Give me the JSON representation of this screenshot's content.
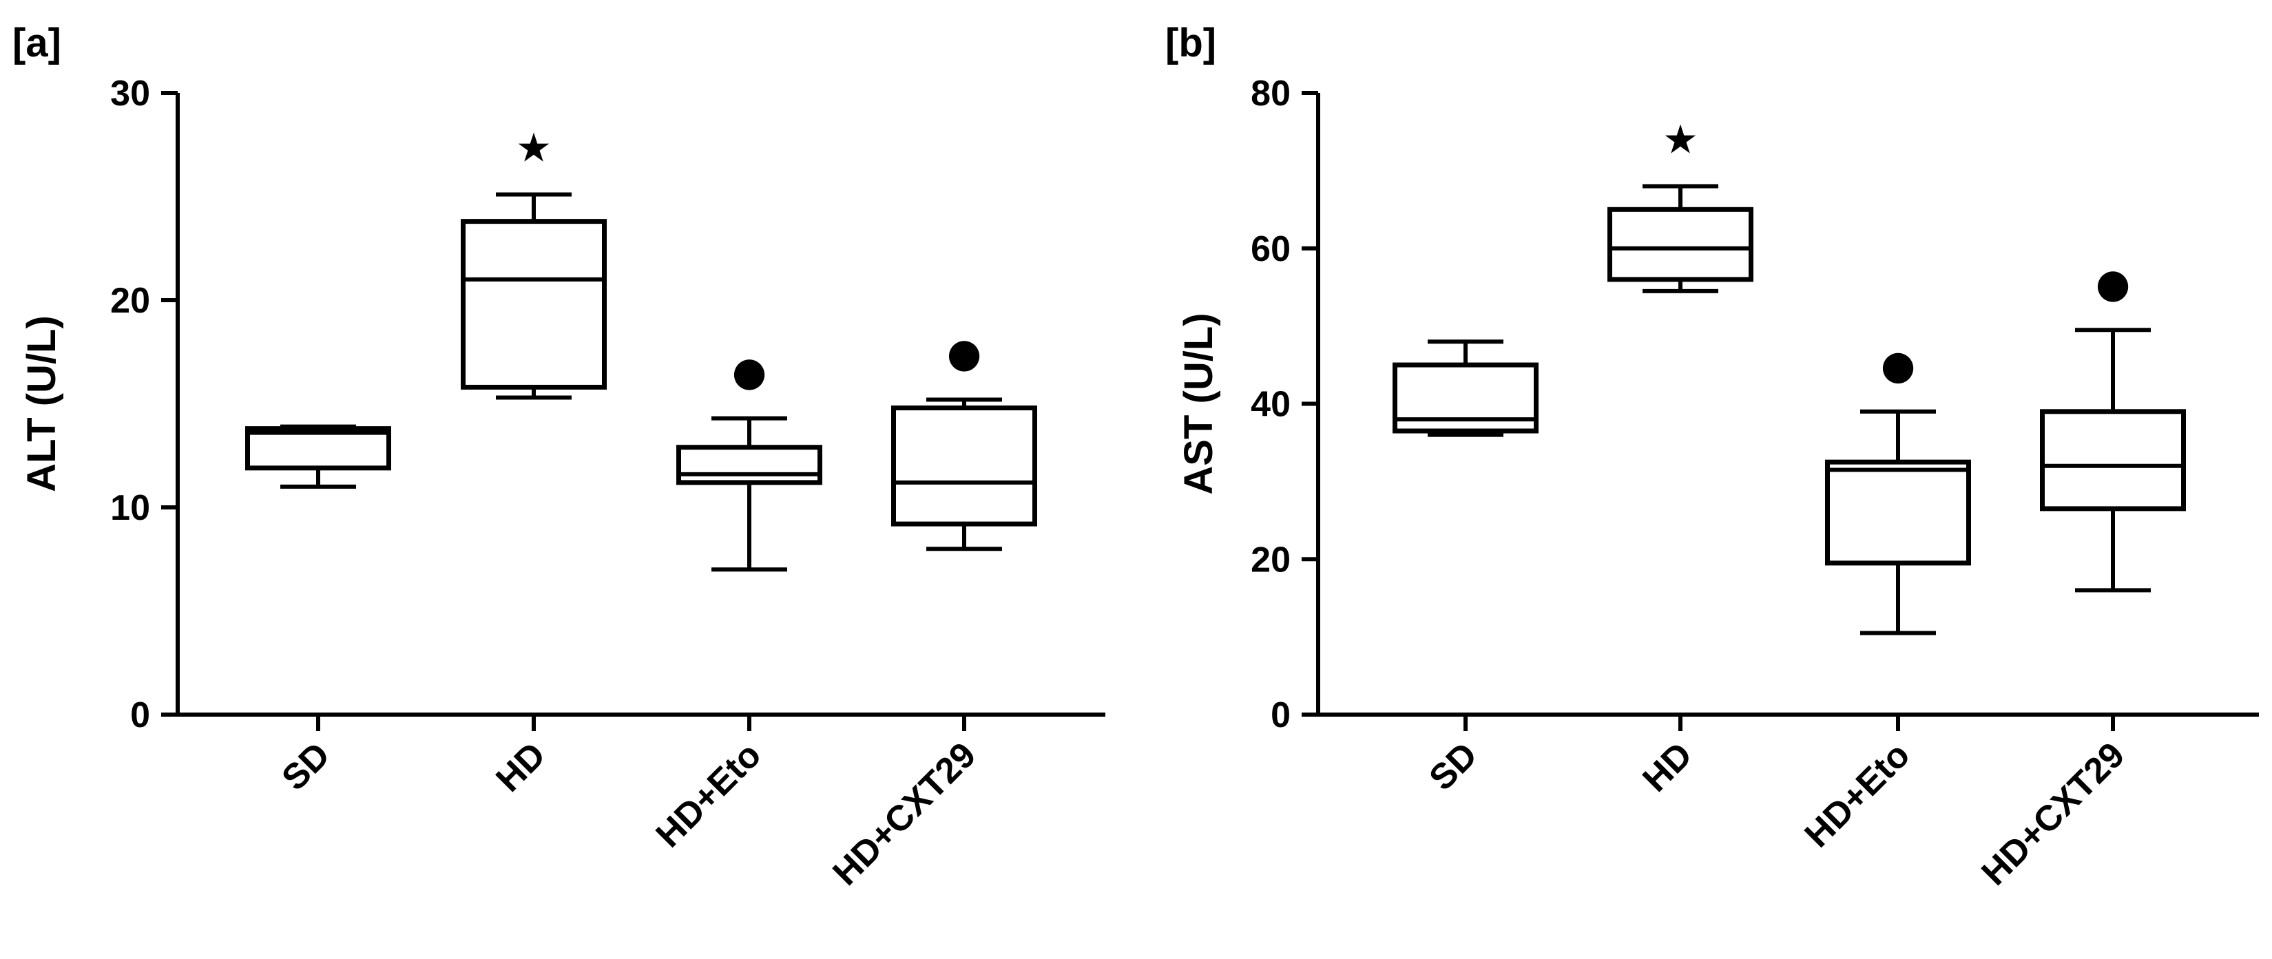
{
  "chart_data": [
    {
      "type": "box",
      "panel_label": "[a]",
      "ylabel": "ALT (U/L)",
      "xlabel": "",
      "ylim": [
        0,
        30
      ],
      "yticks": [
        0,
        10,
        20,
        30
      ],
      "categories": [
        "SD",
        "HD",
        "HD+Eto",
        "HD+CXT29"
      ],
      "boxes": [
        {
          "category": "SD",
          "min": 11.0,
          "q1": 11.9,
          "median": 13.6,
          "q3": 13.8,
          "max": 13.9,
          "marker": ""
        },
        {
          "category": "HD",
          "min": 15.3,
          "q1": 15.8,
          "median": 21.0,
          "q3": 23.8,
          "max": 25.1,
          "marker": "★"
        },
        {
          "category": "HD+Eto",
          "min": 7.0,
          "q1": 11.2,
          "median": 11.6,
          "q3": 12.9,
          "max": 14.3,
          "marker": "●"
        },
        {
          "category": "HD+CXT29",
          "min": 8.0,
          "q1": 9.2,
          "median": 11.2,
          "q3": 14.8,
          "max": 15.2,
          "marker": "●"
        }
      ]
    },
    {
      "type": "box",
      "panel_label": "[b]",
      "ylabel": "AST (U/L)",
      "xlabel": "",
      "ylim": [
        0,
        80
      ],
      "yticks": [
        0,
        20,
        40,
        60,
        80
      ],
      "categories": [
        "SD",
        "HD",
        "HD+Eto",
        "HD+CXT29"
      ],
      "boxes": [
        {
          "category": "SD",
          "min": 36.0,
          "q1": 36.5,
          "median": 38.0,
          "q3": 45.0,
          "max": 48.0,
          "marker": ""
        },
        {
          "category": "HD",
          "min": 54.5,
          "q1": 56.0,
          "median": 60.0,
          "q3": 65.0,
          "max": 68.0,
          "marker": "★"
        },
        {
          "category": "HD+Eto",
          "min": 10.5,
          "q1": 19.5,
          "median": 31.5,
          "q3": 32.5,
          "max": 39.0,
          "marker": "●"
        },
        {
          "category": "HD+CXT29",
          "min": 16.0,
          "q1": 26.5,
          "median": 32.0,
          "q3": 39.0,
          "max": 49.5,
          "marker": "●"
        }
      ]
    }
  ]
}
